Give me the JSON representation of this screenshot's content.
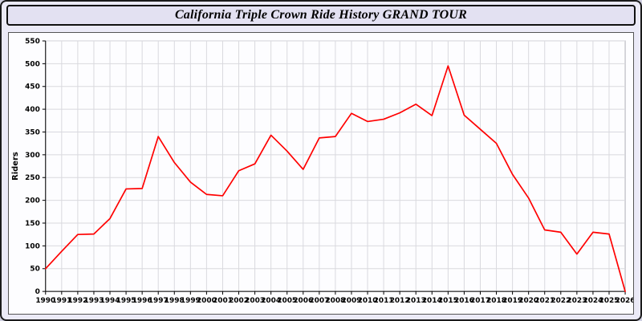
{
  "page": {
    "title": "California Triple Crown Ride History GRAND TOUR"
  },
  "chart_data": {
    "type": "line",
    "title": "California Triple Crown Ride History GRAND TOUR",
    "xlabel": "",
    "ylabel": "Riders",
    "ylim": [
      0,
      550
    ],
    "ytick_step": 50,
    "grid": true,
    "legend_position": "none",
    "line_color": "#ff0000",
    "grid_color": "#d9d9de",
    "plot_bg": "#fdfdff",
    "x": [
      1990,
      1991,
      1992,
      1993,
      1994,
      1995,
      1996,
      1997,
      1998,
      1999,
      2000,
      2001,
      2002,
      2003,
      2004,
      2005,
      2006,
      2007,
      2008,
      2009,
      2010,
      2011,
      2012,
      2013,
      2014,
      2015,
      2016,
      2017,
      2018,
      2019,
      2020,
      2021,
      2022,
      2023,
      2024,
      2025,
      2026
    ],
    "series": [
      {
        "name": "Riders",
        "values": [
          50,
          88,
          125,
          126,
          160,
          225,
          226,
          340,
          283,
          240,
          213,
          210,
          265,
          280,
          343,
          308,
          268,
          337,
          340,
          391,
          373,
          378,
          392,
          411,
          386,
          495,
          387,
          356,
          325,
          257,
          205,
          135,
          130,
          82,
          130,
          126,
          0
        ]
      }
    ]
  }
}
